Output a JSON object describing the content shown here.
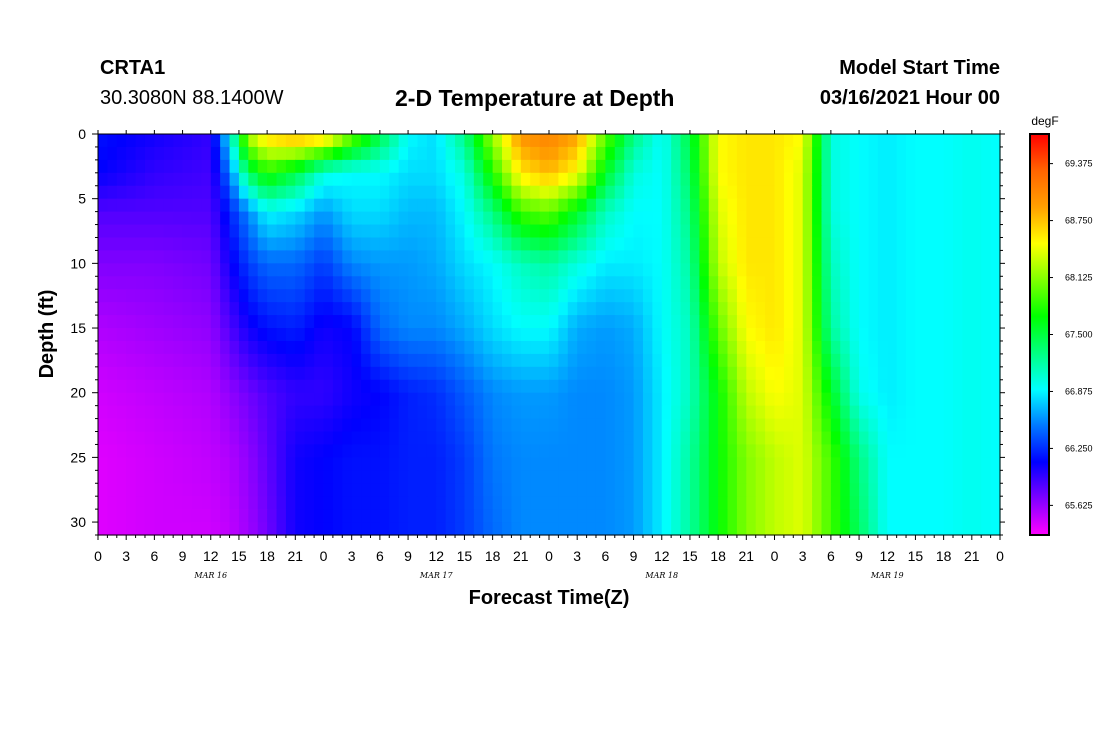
{
  "header": {
    "station_id": "CRTA1",
    "coords": "30.3080N 88.1400W",
    "title": "2-D Temperature at Depth",
    "start_label": "Model Start Time",
    "start_value": "03/16/2021 Hour 00"
  },
  "chart_data": {
    "type": "heatmap",
    "title": "2-D Temperature at Depth",
    "xlabel": "Forecast Time(Z)",
    "ylabel": "Depth (ft)",
    "x_range_hours": [
      0,
      96
    ],
    "y_range_ft": [
      0,
      31
    ],
    "y_inverted": true,
    "x_tick_labels": [
      "0",
      "3",
      "6",
      "9",
      "12",
      "15",
      "18",
      "21",
      "0",
      "3",
      "6",
      "9",
      "12",
      "15",
      "18",
      "21",
      "0",
      "3",
      "6",
      "9",
      "12",
      "15",
      "18",
      "21",
      "0",
      "3",
      "6",
      "9",
      "12",
      "15",
      "18",
      "21",
      "0"
    ],
    "date_labels": [
      {
        "label": "MAR 16",
        "hour": 12
      },
      {
        "label": "MAR 17",
        "hour": 36
      },
      {
        "label": "MAR 18",
        "hour": 60
      },
      {
        "label": "MAR 19",
        "hour": 84
      }
    ],
    "y_ticks": [
      0,
      5,
      10,
      15,
      20,
      25,
      30
    ],
    "colorbar": {
      "unit": "degF",
      "min": 65.3,
      "max": 69.7,
      "labels": [
        "69.375",
        "68.750",
        "68.125",
        "67.500",
        "66.875",
        "66.250",
        "65.625"
      ],
      "colors": [
        "#ff00ff",
        "#8000ff",
        "#0000ff",
        "#0078ff",
        "#00ffff",
        "#00ff80",
        "#00ff00",
        "#80ff00",
        "#ffff00",
        "#ffa000",
        "#ff6400",
        "#ff0000"
      ]
    },
    "temperature_profile": {
      "depths_ft": [
        0,
        3,
        6,
        10,
        15,
        20,
        25,
        31
      ],
      "hours": [
        0,
        6,
        12,
        14,
        16,
        18,
        21,
        24,
        27,
        30,
        33,
        36,
        39,
        42,
        45,
        48,
        51,
        54,
        57,
        60,
        63,
        66,
        69,
        72,
        75,
        78,
        81,
        84,
        87,
        90,
        93,
        96
      ],
      "values_degF": [
        [
          66.15,
          66.05,
          65.95,
          66.9,
          68.3,
          68.7,
          68.9,
          68.8,
          68.1,
          67.5,
          66.9,
          66.8,
          67.3,
          68.2,
          69.0,
          69.1,
          68.9,
          68.0,
          67.3,
          66.9,
          67.5,
          68.5,
          68.6,
          68.6,
          68.5,
          67.0,
          66.9,
          66.85,
          66.9,
          66.9,
          66.95,
          66.9
        ],
        [
          66.1,
          65.95,
          65.9,
          66.5,
          67.4,
          67.8,
          67.5,
          67.0,
          66.9,
          66.9,
          66.8,
          66.8,
          67.0,
          67.8,
          68.6,
          68.8,
          68.5,
          67.6,
          67.0,
          66.9,
          67.4,
          68.5,
          68.6,
          68.6,
          68.4,
          67.0,
          66.9,
          66.85,
          66.9,
          66.9,
          66.95,
          66.9
        ],
        [
          65.85,
          65.85,
          65.85,
          66.2,
          66.55,
          66.9,
          66.8,
          66.6,
          66.8,
          66.8,
          66.7,
          66.7,
          66.9,
          67.3,
          67.9,
          68.0,
          67.6,
          67.1,
          66.9,
          66.9,
          67.3,
          68.4,
          68.6,
          68.6,
          68.4,
          67.0,
          66.9,
          66.85,
          66.9,
          66.9,
          66.95,
          66.9
        ],
        [
          65.7,
          65.7,
          65.75,
          66.05,
          66.3,
          66.45,
          66.45,
          66.3,
          66.55,
          66.6,
          66.6,
          66.65,
          66.8,
          66.9,
          67.1,
          67.2,
          67.0,
          66.85,
          66.85,
          66.9,
          67.2,
          68.3,
          68.6,
          68.6,
          68.4,
          67.1,
          66.9,
          66.85,
          66.9,
          66.9,
          66.95,
          66.9
        ],
        [
          65.55,
          65.6,
          65.65,
          65.85,
          66.05,
          66.15,
          66.2,
          66.05,
          66.1,
          66.45,
          66.55,
          66.55,
          66.65,
          66.8,
          66.9,
          66.9,
          66.65,
          66.6,
          66.65,
          66.9,
          67.1,
          68.0,
          68.5,
          68.6,
          68.4,
          67.2,
          66.9,
          66.85,
          66.9,
          66.9,
          66.95,
          66.9
        ],
        [
          65.45,
          65.5,
          65.55,
          65.65,
          65.75,
          65.85,
          65.95,
          65.95,
          66.05,
          66.1,
          66.2,
          66.25,
          66.4,
          66.55,
          66.6,
          66.6,
          66.55,
          66.55,
          66.6,
          66.85,
          67.1,
          67.7,
          68.3,
          68.5,
          68.4,
          67.6,
          66.95,
          66.85,
          66.9,
          66.9,
          66.95,
          66.9
        ],
        [
          65.4,
          65.45,
          65.5,
          65.55,
          65.65,
          65.8,
          66.05,
          66.1,
          66.15,
          66.15,
          66.2,
          66.2,
          66.3,
          66.5,
          66.55,
          66.55,
          66.55,
          66.55,
          66.6,
          66.85,
          67.2,
          67.7,
          68.1,
          68.3,
          68.4,
          67.9,
          67.3,
          66.9,
          66.9,
          66.9,
          66.95,
          66.9
        ],
        [
          65.4,
          65.45,
          65.45,
          65.5,
          65.6,
          65.75,
          66.05,
          66.1,
          66.15,
          66.15,
          66.2,
          66.2,
          66.3,
          66.45,
          66.55,
          66.55,
          66.55,
          66.55,
          66.6,
          66.85,
          67.2,
          67.7,
          68.1,
          68.3,
          68.4,
          67.9,
          67.4,
          66.9,
          66.9,
          66.9,
          66.95,
          66.9
        ]
      ]
    }
  }
}
